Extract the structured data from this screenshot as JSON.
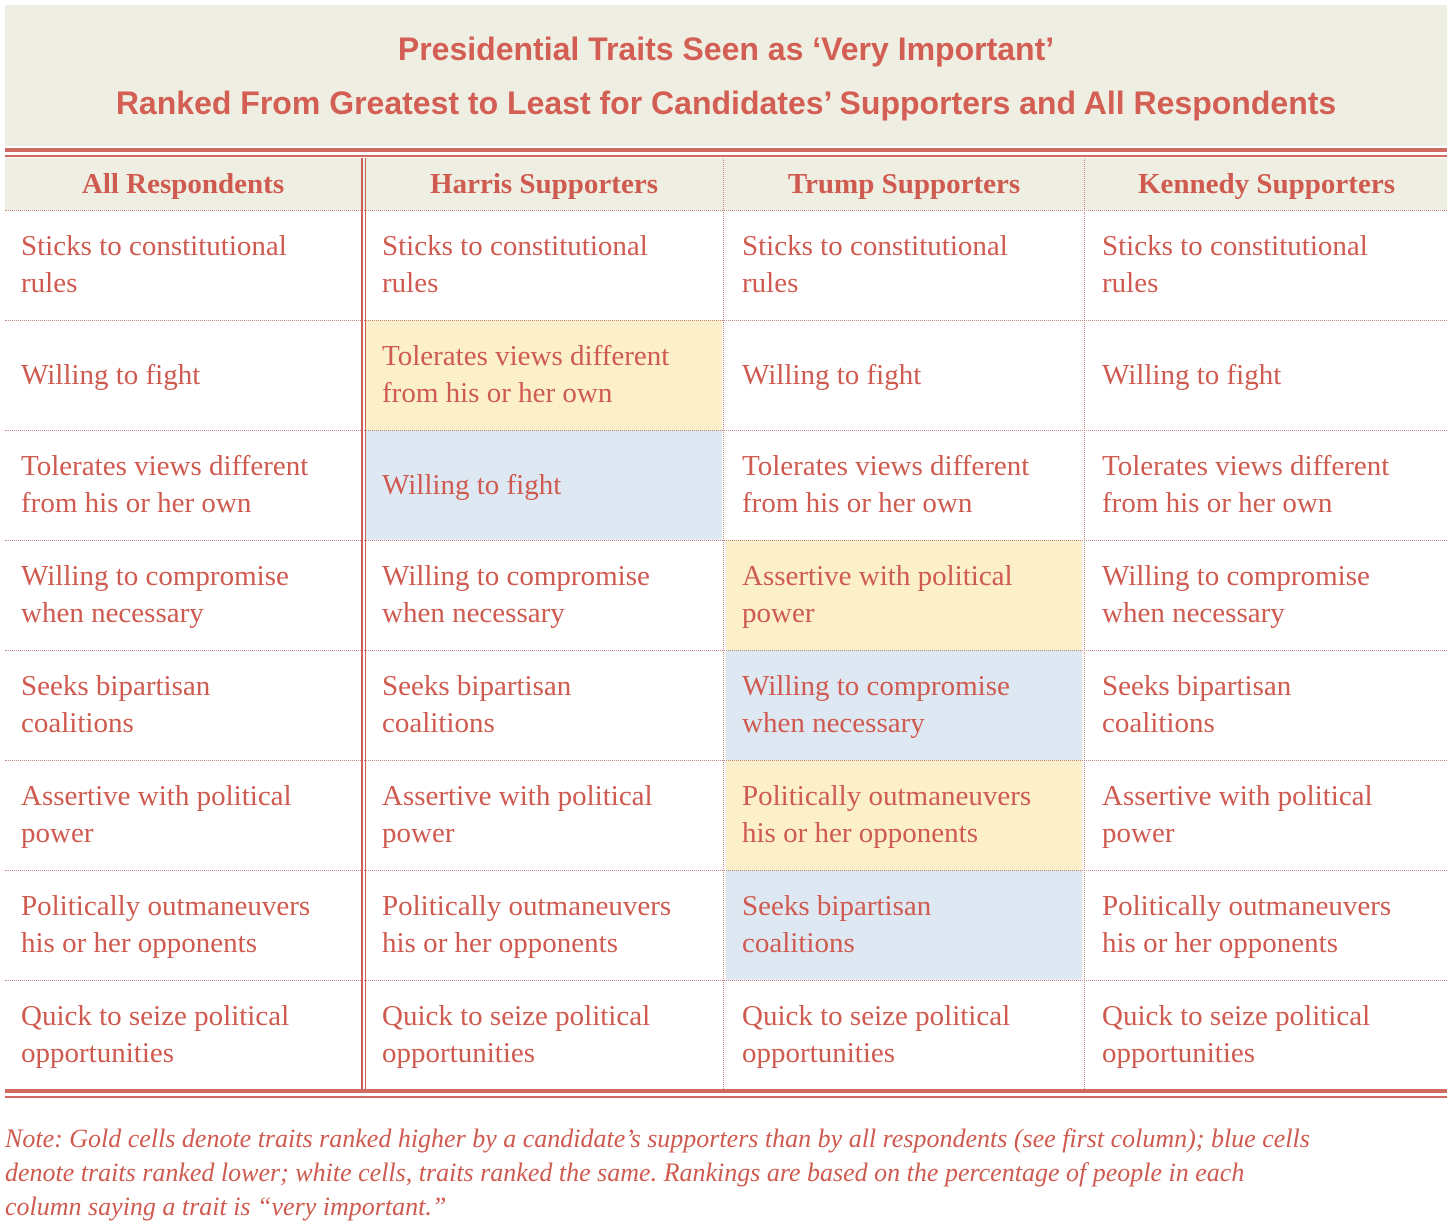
{
  "title": {
    "line1": "Presidential Traits Seen as ‘Very Important’",
    "line2": "Ranked From Greatest to Least for Candidates’ Supporters and All Respondents"
  },
  "colors": {
    "title_band": "#efeee2",
    "text": "#cf5a4f",
    "gold_cell": "#fcf0ca",
    "blue_cell": "#dde8f3",
    "rules": "#d0695f"
  },
  "chart_data": {
    "type": "table",
    "columns": [
      "All Respondents",
      "Harris Supporters",
      "Trump Supporters",
      "Kennedy Supporters"
    ],
    "rows": [
      [
        {
          "line1": "Sticks to constitutional",
          "line2": "rules",
          "shade": "white"
        },
        {
          "line1": "Sticks to constitutional",
          "line2": "rules",
          "shade": "white"
        },
        {
          "line1": "Sticks to constitutional",
          "line2": "rules",
          "shade": "white"
        },
        {
          "line1": "Sticks to constitutional",
          "line2": "rules",
          "shade": "white"
        }
      ],
      [
        {
          "line1": "Willing to fight",
          "line2": "",
          "shade": "white"
        },
        {
          "line1": "Tolerates views different",
          "line2": "from his or her own",
          "shade": "gold"
        },
        {
          "line1": "Willing to fight",
          "line2": "",
          "shade": "white"
        },
        {
          "line1": "Willing to fight",
          "line2": "",
          "shade": "white"
        }
      ],
      [
        {
          "line1": "Tolerates views different",
          "line2": "from his or her own",
          "shade": "white"
        },
        {
          "line1": "Willing to fight",
          "line2": "",
          "shade": "blue"
        },
        {
          "line1": "Tolerates views different",
          "line2": "from his or her own",
          "shade": "white"
        },
        {
          "line1": "Tolerates views different",
          "line2": "from his or her own",
          "shade": "white"
        }
      ],
      [
        {
          "line1": "Willing to compromise",
          "line2": "when necessary",
          "shade": "white"
        },
        {
          "line1": "Willing to compromise",
          "line2": "when necessary",
          "shade": "white"
        },
        {
          "line1": "Assertive with political",
          "line2": "power",
          "shade": "gold"
        },
        {
          "line1": "Willing to compromise",
          "line2": "when necessary",
          "shade": "white"
        }
      ],
      [
        {
          "line1": "Seeks bipartisan",
          "line2": "coalitions",
          "shade": "white"
        },
        {
          "line1": "Seeks bipartisan",
          "line2": "coalitions",
          "shade": "white"
        },
        {
          "line1": "Willing to compromise",
          "line2": "when necessary",
          "shade": "blue"
        },
        {
          "line1": "Seeks bipartisan",
          "line2": "coalitions",
          "shade": "white"
        }
      ],
      [
        {
          "line1": "Assertive with political",
          "line2": "power",
          "shade": "white"
        },
        {
          "line1": "Assertive with political",
          "line2": "power",
          "shade": "white"
        },
        {
          "line1": "Politically outmaneuvers",
          "line2": "his or her opponents",
          "shade": "gold"
        },
        {
          "line1": "Assertive with political",
          "line2": "power",
          "shade": "white"
        }
      ],
      [
        {
          "line1": "Politically outmaneuvers",
          "line2": "his or her opponents",
          "shade": "white"
        },
        {
          "line1": "Politically outmaneuvers",
          "line2": "his or her opponents",
          "shade": "white"
        },
        {
          "line1": "Seeks bipartisan",
          "line2": "coalitions",
          "shade": "blue"
        },
        {
          "line1": "Politically outmaneuvers",
          "line2": "his or her opponents",
          "shade": "white"
        }
      ],
      [
        {
          "line1": "Quick to seize political",
          "line2": "opportunities",
          "shade": "white"
        },
        {
          "line1": "Quick to seize political",
          "line2": "opportunities",
          "shade": "white"
        },
        {
          "line1": "Quick to seize political",
          "line2": "opportunities",
          "shade": "white"
        },
        {
          "line1": "Quick to seize political",
          "line2": "opportunities",
          "shade": "white"
        }
      ]
    ]
  },
  "note": {
    "line1": "Note: Gold cells denote traits ranked higher by a candidate’s supporters than by all respondents (see first column); blue cells",
    "line2": "denote traits ranked lower; white cells, traits ranked the same. Rankings are based on the percentage of people in each",
    "line3": "column saying a trait is “very important.”"
  }
}
